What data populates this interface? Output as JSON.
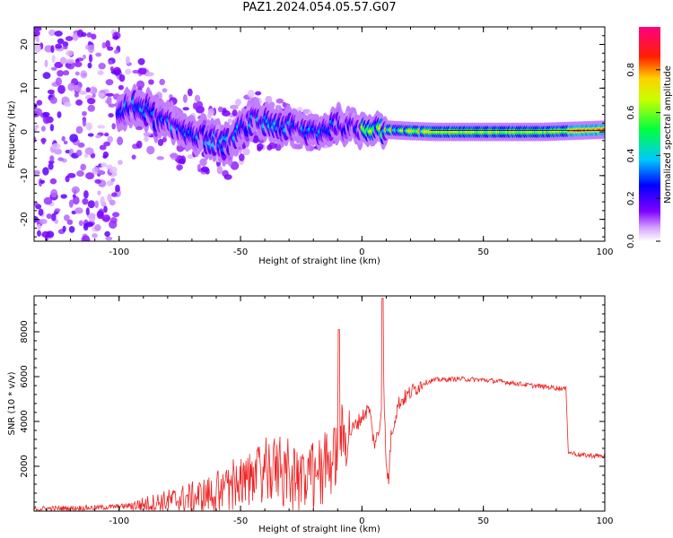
{
  "figure_title": "PAZ1.2024.054.05.57.G07",
  "colors": {
    "snr_line": "#ee2222",
    "axes": "#000000"
  },
  "chart_data": [
    {
      "type": "heatmap",
      "xlabel": "Height of straight line (km)",
      "ylabel": "Frequency (Hz)",
      "xlim": [
        -135,
        100
      ],
      "ylim": [
        -25,
        24
      ],
      "xticks": [
        -100,
        -50,
        0,
        50,
        100
      ],
      "yticks": [
        -20,
        -10,
        0,
        10,
        20
      ],
      "colorbar": {
        "label": "Normalized spectral amplitude",
        "range": [
          0,
          1
        ],
        "ticks": [
          "0.0",
          "0.2",
          "0.4",
          "0.6",
          "0.8"
        ],
        "colormap": "gist_rainbow_reversed (white-purple-blue-cyan-green-yellow-red-magenta)"
      },
      "ridge_centerline": [
        {
          "x": -100,
          "y": 4.5
        },
        {
          "x": -90,
          "y": 6
        },
        {
          "x": -85,
          "y": 3
        },
        {
          "x": -75,
          "y": 1
        },
        {
          "x": -65,
          "y": -1
        },
        {
          "x": -55,
          "y": -3
        },
        {
          "x": -45,
          "y": 3
        },
        {
          "x": -38,
          "y": 2
        },
        {
          "x": -30,
          "y": 1
        },
        {
          "x": -22,
          "y": 0
        },
        {
          "x": -15,
          "y": 0.5
        },
        {
          "x": -10,
          "y": 2
        },
        {
          "x": -5,
          "y": 1
        },
        {
          "x": 0,
          "y": 0.5
        },
        {
          "x": 5,
          "y": 1.5
        },
        {
          "x": 10,
          "y": 0.5
        },
        {
          "x": 20,
          "y": 0.2
        },
        {
          "x": 30,
          "y": 0
        },
        {
          "x": 50,
          "y": 0
        },
        {
          "x": 75,
          "y": 0
        },
        {
          "x": 100,
          "y": 0.5
        }
      ]
    },
    {
      "type": "line",
      "xlabel": "Height of straight line (km)",
      "ylabel": "SNR (10 * v/v)",
      "xlim": [
        -135,
        100
      ],
      "ylim": [
        0,
        9600
      ],
      "xticks": [
        -100,
        -50,
        0,
        50,
        100
      ],
      "yticks": [
        2000,
        4000,
        6000,
        8000
      ],
      "series": [
        {
          "x": [
            -135,
            -110,
            -100,
            -90,
            -80,
            -70,
            -60,
            -50,
            -45,
            -40,
            -35,
            -30,
            -25,
            -20,
            -17,
            -15,
            -12,
            -10,
            -9,
            -8,
            -5,
            0,
            3,
            5,
            7,
            8,
            9,
            10,
            11,
            12,
            15,
            20,
            25,
            30,
            40,
            50,
            60,
            70,
            80,
            84,
            85,
            86,
            90,
            100
          ],
          "values": [
            100,
            150,
            200,
            300,
            450,
            600,
            800,
            1100,
            1400,
            1700,
            1800,
            1300,
            1100,
            1200,
            1700,
            2000,
            2200,
            2800,
            3700,
            3200,
            3500,
            4200,
            4600,
            3000,
            3500,
            4600,
            5500,
            1900,
            1400,
            3400,
            4800,
            5300,
            5700,
            5850,
            5900,
            5850,
            5750,
            5600,
            5500,
            5450,
            2650,
            2600,
            2500,
            2450
          ]
        }
      ],
      "spikes": [
        {
          "x": -9.5,
          "y": 8100
        },
        {
          "x": 8.5,
          "y": 9500
        }
      ]
    }
  ]
}
